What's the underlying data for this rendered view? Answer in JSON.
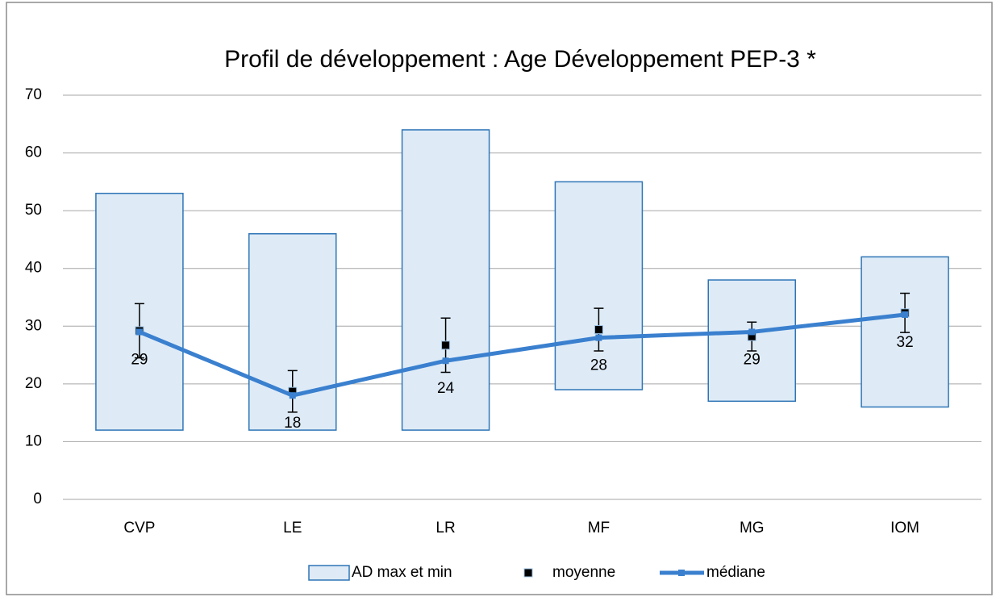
{
  "chart_data": {
    "type": "combo",
    "title": "Profil  de développement  : Age Développement  PEP-3 *",
    "categories": [
      "CVP",
      "LE",
      "LR",
      "MF",
      "MG",
      "IOM"
    ],
    "ylim": [
      0,
      70
    ],
    "yticks": [
      0,
      10,
      20,
      30,
      40,
      50,
      60,
      70
    ],
    "grid": true,
    "legend": "bottom",
    "series": [
      {
        "name": "AD max et min",
        "type": "range",
        "color": "#deebf7",
        "edge_color": "#2e75b6",
        "low": [
          12,
          12,
          12,
          19,
          17,
          16
        ],
        "high": [
          53,
          46,
          64,
          55,
          38,
          42
        ]
      },
      {
        "name": "moyenne",
        "type": "marker",
        "color": "#000000",
        "values": [
          29.2,
          18.7,
          26.7,
          29.4,
          28.2,
          32.3
        ],
        "errors": [
          4.7,
          3.6,
          4.7,
          3.7,
          2.5,
          3.4
        ]
      },
      {
        "name": "médiane",
        "type": "line",
        "color": "#3a80cf",
        "values": [
          29,
          18,
          24,
          28,
          29,
          32
        ],
        "data_labels": true
      }
    ]
  }
}
